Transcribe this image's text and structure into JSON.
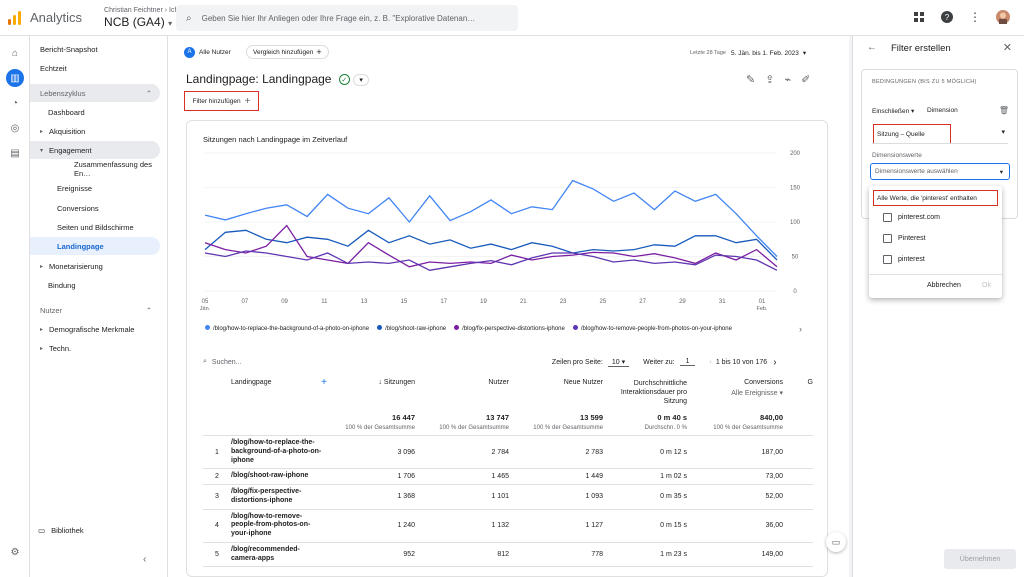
{
  "topbar": {
    "app_name": "Analytics",
    "account_line1": "Christian Feichtner",
    "account_separator": "›",
    "account_line1b": "Ich",
    "property": "NCB (GA4)",
    "search_placeholder": "Geben Sie hier Ihr Anliegen oder Ihre Frage ein, z. B. \"Explorative Datenan…"
  },
  "sidebar": {
    "items": [
      {
        "label": "Bericht-Snapshot"
      },
      {
        "label": "Echtzeit"
      },
      {
        "label": "Lebenszyklus"
      },
      {
        "label": "Dashboard"
      },
      {
        "label": "Akquisition"
      },
      {
        "label": "Engagement"
      },
      {
        "label": "Zusammenfassung des En…"
      },
      {
        "label": "Ereignisse"
      },
      {
        "label": "Conversions"
      },
      {
        "label": "Seiten und Bildschirme"
      },
      {
        "label": "Landingpage"
      },
      {
        "label": "Monetarisierung"
      },
      {
        "label": "Bindung"
      },
      {
        "label": "Nutzer"
      },
      {
        "label": "Demografische Merkmale"
      },
      {
        "label": "Techn."
      }
    ],
    "library": "Bibliothek"
  },
  "toolbar": {
    "segment_label": "Alle Nutzer",
    "segment_letter": "A",
    "compare_label": "Vergleich hinzufügen",
    "compare_icon": "+",
    "date_prefix": "Letzte 28 Tage",
    "date_range": "5. Jän. bis 1. Feb. 2023"
  },
  "report": {
    "title": "Landingpage: Landingpage",
    "filter_button": "Filter hinzufügen",
    "filter_plus": "+"
  },
  "chart_data": {
    "type": "line",
    "title": "Sitzungen nach Landingpage im Zeitverlauf",
    "x_ticks": [
      "05 Jän.",
      "07",
      "09",
      "11",
      "13",
      "15",
      "17",
      "19",
      "21",
      "23",
      "25",
      "27",
      "29",
      "31",
      "01 Feb."
    ],
    "ylim": [
      0,
      200
    ],
    "y_ticks": [
      0,
      50,
      100,
      150,
      200
    ],
    "legend": [
      "/blog/how-to-replace-the-background-of-a-photo-on-iphone",
      "/blog/shoot-raw-iphone",
      "/blog/fix-perspective-distortions-iphone",
      "/blog/how-to-remove-people-from-photos-on-your-iphone"
    ],
    "series": [
      {
        "name": "/blog/how-to-replace-the-background-of-a-photo-on-iphone",
        "color": "#4285f4",
        "values": [
          110,
          103,
          112,
          120,
          125,
          108,
          140,
          120,
          112,
          135,
          100,
          138,
          102,
          115,
          132,
          112,
          122,
          118,
          160,
          148,
          130,
          142,
          118,
          145,
          130,
          140,
          112,
          80,
          50
        ]
      },
      {
        "name": "/blog/shoot-raw-iphone",
        "color": "#185abc",
        "values": [
          60,
          85,
          88,
          75,
          70,
          78,
          75,
          65,
          88,
          70,
          80,
          68,
          74,
          62,
          68,
          60,
          70,
          65,
          55,
          60,
          58,
          60,
          67,
          65,
          80,
          80,
          70,
          75,
          45
        ]
      },
      {
        "name": "/blog/fix-perspective-distortions-iphone",
        "color": "#7b1fa2",
        "values": [
          70,
          60,
          55,
          65,
          95,
          50,
          45,
          40,
          70,
          52,
          35,
          42,
          40,
          42,
          40,
          52,
          45,
          50,
          52,
          56,
          55,
          50,
          54,
          48,
          40,
          55,
          45,
          60,
          35
        ]
      },
      {
        "name": "/blog/how-to-remove-people-from-photos-on-your-iphone",
        "color": "#5e35b1",
        "values": [
          55,
          50,
          58,
          55,
          50,
          45,
          55,
          40,
          42,
          40,
          45,
          30,
          35,
          40,
          44,
          38,
          48,
          55,
          55,
          50,
          42,
          45,
          40,
          42,
          38,
          52,
          50,
          45,
          30
        ]
      }
    ]
  },
  "table_controls": {
    "search_placeholder": "Suchen...",
    "rows_per_page_label": "Zeilen pro Seite:",
    "rows_per_page_value": "10",
    "goto_label": "Weiter zu:",
    "goto_value": "1",
    "pagination": "1 bis 10 von 176"
  },
  "table": {
    "columns": [
      "Landingpage",
      "Sitzungen",
      "Nutzer",
      "Neue Nutzer",
      "Durchschnittliche Interaktionsdauer pro Sitzung",
      "Conversions"
    ],
    "conversions_sub": "Alle Ereignisse",
    "extra_col": "G",
    "totals": [
      "16 447",
      "13 747",
      "13 599",
      "0 m 40 s",
      "840,00"
    ],
    "totals_sub": [
      "100 % der Gesamtsumme",
      "100 % der Gesamtsumme",
      "100 % der Gesamtsumme",
      "Durchschn. 0 %",
      "100 % der Gesamtsumme"
    ],
    "rows": [
      {
        "n": "1",
        "page": "/blog/how-to-replace-the-background-of-a-photo-on-iphone",
        "sessions": "3 096",
        "users": "2 784",
        "new_users": "2 783",
        "duration": "0 m 12 s",
        "conversions": "187,00"
      },
      {
        "n": "2",
        "page": "/blog/shoot-raw-iphone",
        "sessions": "1 706",
        "users": "1 465",
        "new_users": "1 449",
        "duration": "1 m 02 s",
        "conversions": "73,00"
      },
      {
        "n": "3",
        "page": "/blog/fix-perspective-distortions-iphone",
        "sessions": "1 368",
        "users": "1 101",
        "new_users": "1 093",
        "duration": "0 m 35 s",
        "conversions": "52,00"
      },
      {
        "n": "4",
        "page": "/blog/how-to-remove-people-from-photos-on-your-iphone",
        "sessions": "1 240",
        "users": "1 132",
        "new_users": "1 127",
        "duration": "0 m 15 s",
        "conversions": "36,00"
      },
      {
        "n": "5",
        "page": "/blog/recommended-camera-apps",
        "sessions": "952",
        "users": "812",
        "new_users": "778",
        "duration": "1 m 23 s",
        "conversions": "149,00"
      }
    ]
  },
  "filter_panel": {
    "title": "Filter erstellen",
    "conditions_label": "BEDINGUNGEN (BIS ZU 5 MÖGLICH)",
    "include_label": "Einschließen",
    "dimension_label": "Dimension",
    "dimension_value": "Sitzung – Quelle",
    "values_label": "Dimensionswerte",
    "values_placeholder": "Dimensionswerte auswählen",
    "dropdown_options": [
      {
        "label": "Alle Werte, die 'pinterest' enthalten"
      },
      {
        "label": "pinterest.com"
      },
      {
        "label": "Pinterest"
      },
      {
        "label": "pinterest"
      }
    ],
    "cancel_label": "Abbrechen",
    "ok_label": "Ok",
    "apply_label": "Übernehmen"
  }
}
